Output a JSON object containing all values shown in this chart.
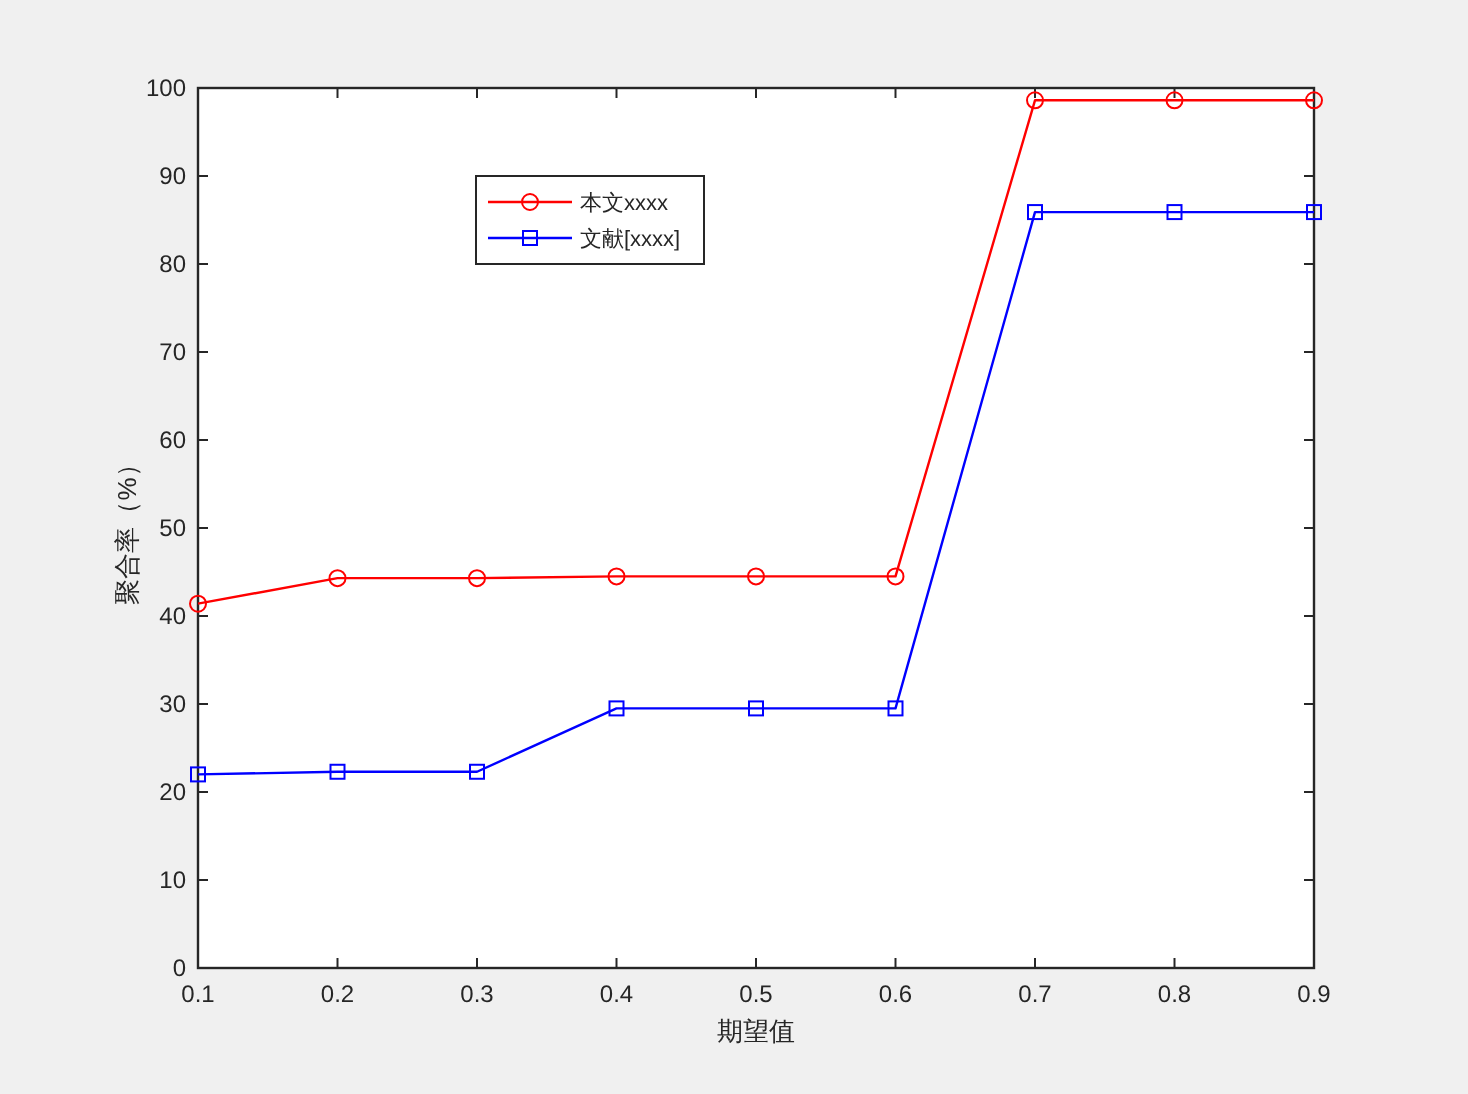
{
  "chart_data": {
    "type": "line",
    "xlabel": "期望值",
    "ylabel": "聚合率（%）",
    "x": [
      0.1,
      0.2,
      0.3,
      0.4,
      0.5,
      0.6,
      0.7,
      0.8,
      0.9
    ],
    "series": [
      {
        "name": "本文xxxx",
        "color": "#ff0000",
        "marker": "circle",
        "values": [
          41.4,
          44.3,
          44.3,
          44.5,
          44.5,
          44.5,
          98.6,
          98.6,
          98.6
        ]
      },
      {
        "name": "文献[xxxx]",
        "color": "#0000ff",
        "marker": "square",
        "values": [
          22.0,
          22.3,
          22.3,
          29.5,
          29.5,
          29.5,
          85.9,
          85.9,
          85.9
        ]
      }
    ],
    "xlim": [
      0.1,
      0.9
    ],
    "xticks": [
      0.1,
      0.2,
      0.3,
      0.4,
      0.5,
      0.6,
      0.7,
      0.8,
      0.9
    ],
    "ylim": [
      0,
      100
    ],
    "yticks": [
      0,
      10,
      20,
      30,
      40,
      50,
      60,
      70,
      80,
      90,
      100
    ],
    "legend": "top left",
    "line_style": "solid"
  }
}
